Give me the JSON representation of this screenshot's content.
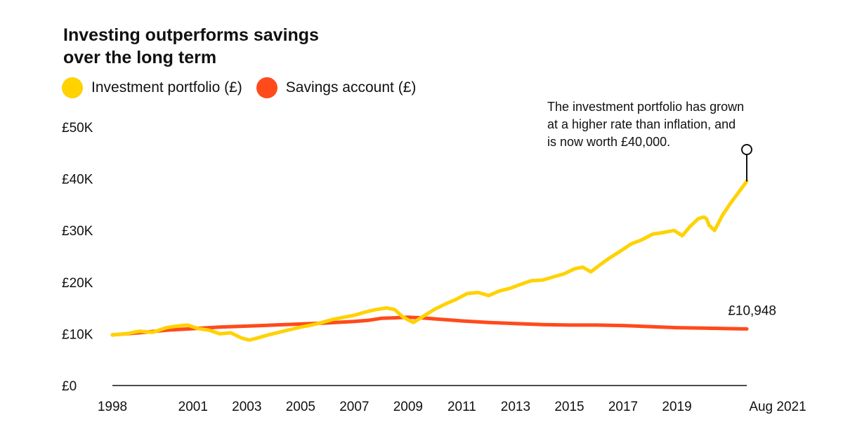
{
  "title_lines": [
    "Investing outperforms savings",
    "over the long term"
  ],
  "legend": [
    {
      "label": "Investment portfolio (£)",
      "color": "#FFD200"
    },
    {
      "label": "Savings account (£)",
      "color": "#FF4A1C"
    }
  ],
  "annotation_lines": [
    "The investment portfolio has grown",
    "at a higher rate than inflation, and",
    "is now worth £40,000."
  ],
  "end_label": "£10,948",
  "chart_data": {
    "type": "line",
    "title": "Investing outperforms savings over the long term",
    "xlabel": "",
    "ylabel": "",
    "ylim": [
      0,
      50000
    ],
    "xlim": [
      1998.0,
      2021.6
    ],
    "y_ticks": [
      {
        "value": 0,
        "label": "£0"
      },
      {
        "value": 10000,
        "label": "£10K"
      },
      {
        "value": 20000,
        "label": "£20K"
      },
      {
        "value": 30000,
        "label": "£30K"
      },
      {
        "value": 40000,
        "label": "£40K"
      },
      {
        "value": 50000,
        "label": "£50K"
      }
    ],
    "x_ticks": [
      {
        "value": 1998,
        "label": "1998"
      },
      {
        "value": 2001,
        "label": "2001"
      },
      {
        "value": 2003,
        "label": "2003"
      },
      {
        "value": 2005,
        "label": "2005"
      },
      {
        "value": 2007,
        "label": "2007"
      },
      {
        "value": 2009,
        "label": "2009"
      },
      {
        "value": 2011,
        "label": "2011"
      },
      {
        "value": 2013,
        "label": "2013"
      },
      {
        "value": 2015,
        "label": "2015"
      },
      {
        "value": 2017,
        "label": "2017"
      },
      {
        "value": 2019,
        "label": "2019"
      },
      {
        "value": 2021.6,
        "label": "Aug 2021"
      }
    ],
    "grid": false,
    "legend_position": "top-left",
    "series": [
      {
        "name": "Investment portfolio (£)",
        "color": "#FFD200",
        "x": [
          1998.0,
          1998.5,
          1999.0,
          1999.5,
          2000.0,
          2000.4,
          2000.8,
          2001.2,
          2001.6,
          2002.0,
          2002.4,
          2002.8,
          2003.1,
          2003.4,
          2003.8,
          2004.2,
          2004.6,
          2005.0,
          2005.4,
          2005.8,
          2006.2,
          2006.6,
          2007.0,
          2007.4,
          2007.8,
          2008.2,
          2008.5,
          2008.8,
          2009.0,
          2009.2,
          2009.6,
          2010.0,
          2010.4,
          2010.8,
          2011.2,
          2011.6,
          2012.0,
          2012.4,
          2012.8,
          2013.2,
          2013.6,
          2014.0,
          2014.4,
          2014.8,
          2015.2,
          2015.5,
          2015.8,
          2016.1,
          2016.5,
          2016.9,
          2017.3,
          2017.7,
          2018.1,
          2018.5,
          2018.9,
          2019.2,
          2019.5,
          2019.8,
          2020.0,
          2020.1,
          2020.2,
          2020.4,
          2020.7,
          2021.0,
          2021.3,
          2021.6
        ],
        "values": [
          9800,
          10000,
          10500,
          10300,
          11200,
          11500,
          11700,
          11000,
          10700,
          10000,
          10200,
          9200,
          8800,
          9200,
          9800,
          10300,
          10800,
          11300,
          11700,
          12200,
          12800,
          13200,
          13600,
          14200,
          14700,
          15000,
          14700,
          13300,
          12700,
          12200,
          13500,
          14800,
          15800,
          16700,
          17800,
          18000,
          17400,
          18300,
          18800,
          19600,
          20300,
          20400,
          21000,
          21600,
          22600,
          22900,
          22000,
          23200,
          24700,
          26000,
          27400,
          28200,
          29300,
          29600,
          30000,
          29000,
          30800,
          32300,
          32600,
          32300,
          31000,
          30000,
          33000,
          35300,
          37400,
          39500
        ]
      },
      {
        "name": "Savings account (£)",
        "color": "#FF4A1C",
        "x": [
          1998.0,
          1999.0,
          2000.0,
          2001.0,
          2002.0,
          2003.0,
          2004.0,
          2005.0,
          2006.0,
          2007.0,
          2007.5,
          2008.0,
          2008.5,
          2009.0,
          2009.5,
          2010.0,
          2011.0,
          2012.0,
          2013.0,
          2014.0,
          2015.0,
          2016.0,
          2017.0,
          2018.0,
          2019.0,
          2020.0,
          2021.0,
          2021.6
        ],
        "values": [
          9800,
          10200,
          10700,
          11000,
          11300,
          11500,
          11700,
          11900,
          12100,
          12400,
          12600,
          13000,
          13100,
          13200,
          13100,
          12900,
          12500,
          12200,
          12000,
          11800,
          11700,
          11700,
          11600,
          11400,
          11200,
          11100,
          11000,
          10948
        ]
      }
    ]
  }
}
